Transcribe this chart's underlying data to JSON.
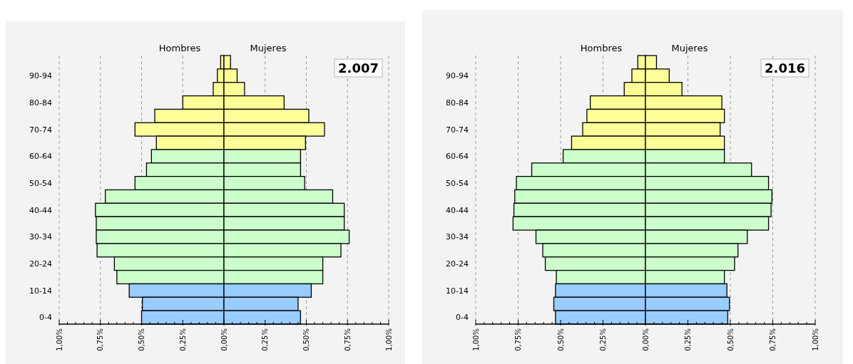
{
  "chart_data": [
    {
      "type": "bar",
      "orientation": "horizontal",
      "stacked": true,
      "title": "2.007",
      "grid": "x",
      "categories": [
        null,
        "90-94",
        null,
        "80-84",
        null,
        "70-74",
        null,
        "60-64",
        null,
        "50-54",
        null,
        "40-44",
        null,
        "30-34",
        null,
        "20-24",
        null,
        "10-14",
        null,
        "0-4"
      ],
      "series": [
        {
          "name": "Hombres",
          "values": [
            -0.02,
            -0.04,
            -0.065,
            -0.25,
            -0.42,
            -0.54,
            -0.41,
            -0.44,
            -0.47,
            -0.54,
            -0.72,
            -0.78,
            -0.775,
            -0.775,
            -0.77,
            -0.665,
            -0.65,
            -0.575,
            -0.495,
            -0.5
          ],
          "colors": [
            "#ffff99",
            "#ffff99",
            "#ffff99",
            "#ffff99",
            "#ffff99",
            "#ffff99",
            "#ffff99",
            "#ccffcc",
            "#ccffcc",
            "#ccffcc",
            "#ccffcc",
            "#ccffcc",
            "#ccffcc",
            "#ccffcc",
            "#ccffcc",
            "#ccffcc",
            "#ccffcc",
            "#99ccff",
            "#99ccff",
            "#99ccff"
          ]
        },
        {
          "name": "Mujeres",
          "values": [
            0.04,
            0.08,
            0.125,
            0.365,
            0.515,
            0.61,
            0.495,
            0.465,
            0.465,
            0.49,
            0.66,
            0.73,
            0.73,
            0.76,
            0.71,
            0.6,
            0.6,
            0.53,
            0.45,
            0.465
          ],
          "colors": [
            "#ffff99",
            "#ffff99",
            "#ffff99",
            "#ffff99",
            "#ffff99",
            "#ffff99",
            "#ffff99",
            "#ccffcc",
            "#ccffcc",
            "#ccffcc",
            "#ccffcc",
            "#ccffcc",
            "#ccffcc",
            "#ccffcc",
            "#ccffcc",
            "#ccffcc",
            "#ccffcc",
            "#99ccff",
            "#99ccff",
            "#99ccff"
          ]
        }
      ],
      "xlim": [
        -1,
        1
      ],
      "xticks": [
        {
          "value": -1,
          "label": "1,00%"
        },
        {
          "value": -0.95,
          "label": null
        },
        {
          "value": -0.9,
          "label": null
        },
        {
          "value": -0.85,
          "label": null
        },
        {
          "value": -0.8,
          "label": null
        },
        {
          "value": -0.75,
          "label": "0,75%"
        },
        {
          "value": -0.7,
          "label": null
        },
        {
          "value": -0.65,
          "label": null
        },
        {
          "value": -0.6,
          "label": null
        },
        {
          "value": -0.55,
          "label": null
        },
        {
          "value": -0.5,
          "label": "0,50%"
        },
        {
          "value": -0.45,
          "label": null
        },
        {
          "value": -0.4,
          "label": null
        },
        {
          "value": -0.35,
          "label": null
        },
        {
          "value": -0.3,
          "label": null
        },
        {
          "value": -0.25,
          "label": "0,25%"
        },
        {
          "value": -0.2,
          "label": null
        },
        {
          "value": -0.15,
          "label": null
        },
        {
          "value": -0.1,
          "label": null
        },
        {
          "value": -0.05,
          "label": null
        },
        {
          "value": 0,
          "label": "0,00%"
        },
        {
          "value": 0.05,
          "label": null
        },
        {
          "value": 0.1,
          "label": null
        },
        {
          "value": 0.15,
          "label": null
        },
        {
          "value": 0.2,
          "label": null
        },
        {
          "value": 0.25,
          "label": "0,25%"
        },
        {
          "value": 0.3,
          "label": null
        },
        {
          "value": 0.35,
          "label": null
        },
        {
          "value": 0.4,
          "label": null
        },
        {
          "value": 0.45,
          "label": null
        },
        {
          "value": 0.5,
          "label": "0,50%"
        },
        {
          "value": 0.55,
          "label": null
        },
        {
          "value": 0.6,
          "label": null
        },
        {
          "value": 0.65,
          "label": null
        },
        {
          "value": 0.7,
          "label": null
        },
        {
          "value": 0.75,
          "label": "0,75%"
        },
        {
          "value": 0.8,
          "label": null
        },
        {
          "value": 0.85,
          "label": null
        },
        {
          "value": 0.9,
          "label": null
        },
        {
          "value": 0.95,
          "label": null
        },
        {
          "value": 1,
          "label": "1,00%"
        }
      ]
    },
    {
      "type": "bar",
      "orientation": "horizontal",
      "stacked": true,
      "title": "2.016",
      "grid": "x",
      "categories": [
        null,
        "90-94",
        null,
        "80-84",
        null,
        "70-74",
        null,
        "60-64",
        null,
        "50-54",
        null,
        "40-44",
        null,
        "30-34",
        null,
        "20-24",
        null,
        "10-14",
        null,
        "0-4"
      ],
      "series": [
        {
          "name": "Hombres",
          "values": [
            -0.045,
            -0.08,
            -0.125,
            -0.325,
            -0.345,
            -0.37,
            -0.435,
            -0.485,
            -0.67,
            -0.76,
            -0.77,
            -0.775,
            -0.78,
            -0.645,
            -0.605,
            -0.59,
            -0.525,
            -0.53,
            -0.54,
            -0.53
          ],
          "colors": [
            "#ffff99",
            "#ffff99",
            "#ffff99",
            "#ffff99",
            "#ffff99",
            "#ffff99",
            "#ffff99",
            "#ccffcc",
            "#ccffcc",
            "#ccffcc",
            "#ccffcc",
            "#ccffcc",
            "#ccffcc",
            "#ccffcc",
            "#ccffcc",
            "#ccffcc",
            "#ccffcc",
            "#99ccff",
            "#99ccff",
            "#99ccff"
          ]
        },
        {
          "name": "Mujeres",
          "values": [
            0.065,
            0.14,
            0.215,
            0.45,
            0.465,
            0.44,
            0.465,
            0.465,
            0.625,
            0.725,
            0.745,
            0.74,
            0.725,
            0.6,
            0.545,
            0.525,
            0.465,
            0.48,
            0.495,
            0.485
          ],
          "colors": [
            "#ffff99",
            "#ffff99",
            "#ffff99",
            "#ffff99",
            "#ffff99",
            "#ffff99",
            "#ffff99",
            "#ccffcc",
            "#ccffcc",
            "#ccffcc",
            "#ccffcc",
            "#ccffcc",
            "#ccffcc",
            "#ccffcc",
            "#ccffcc",
            "#ccffcc",
            "#ccffcc",
            "#99ccff",
            "#99ccff",
            "#99ccff"
          ]
        }
      ],
      "xlim": [
        -1,
        1
      ],
      "xticks": [
        {
          "value": -1,
          "label": "1,00%"
        },
        {
          "value": -0.95,
          "label": null
        },
        {
          "value": -0.9,
          "label": null
        },
        {
          "value": -0.85,
          "label": null
        },
        {
          "value": -0.8,
          "label": null
        },
        {
          "value": -0.75,
          "label": "0,75%"
        },
        {
          "value": -0.7,
          "label": null
        },
        {
          "value": -0.65,
          "label": null
        },
        {
          "value": -0.6,
          "label": null
        },
        {
          "value": -0.55,
          "label": null
        },
        {
          "value": -0.5,
          "label": "0,50%"
        },
        {
          "value": -0.45,
          "label": null
        },
        {
          "value": -0.4,
          "label": null
        },
        {
          "value": -0.35,
          "label": null
        },
        {
          "value": -0.3,
          "label": null
        },
        {
          "value": -0.25,
          "label": "0,25%"
        },
        {
          "value": -0.2,
          "label": null
        },
        {
          "value": -0.15,
          "label": null
        },
        {
          "value": -0.1,
          "label": null
        },
        {
          "value": -0.05,
          "label": null
        },
        {
          "value": 0,
          "label": "0,00%"
        },
        {
          "value": 0.05,
          "label": null
        },
        {
          "value": 0.1,
          "label": null
        },
        {
          "value": 0.15,
          "label": null
        },
        {
          "value": 0.2,
          "label": null
        },
        {
          "value": 0.25,
          "label": "0,25%"
        },
        {
          "value": 0.3,
          "label": null
        },
        {
          "value": 0.35,
          "label": null
        },
        {
          "value": 0.4,
          "label": null
        },
        {
          "value": 0.45,
          "label": null
        },
        {
          "value": 0.5,
          "label": "0,50%"
        },
        {
          "value": 0.55,
          "label": null
        },
        {
          "value": 0.6,
          "label": null
        },
        {
          "value": 0.65,
          "label": null
        },
        {
          "value": 0.7,
          "label": null
        },
        {
          "value": 0.75,
          "label": "0,75%"
        },
        {
          "value": 0.8,
          "label": null
        },
        {
          "value": 0.85,
          "label": null
        },
        {
          "value": 0.9,
          "label": null
        },
        {
          "value": 0.95,
          "label": null
        },
        {
          "value": 1,
          "label": "1,00%"
        }
      ]
    }
  ]
}
